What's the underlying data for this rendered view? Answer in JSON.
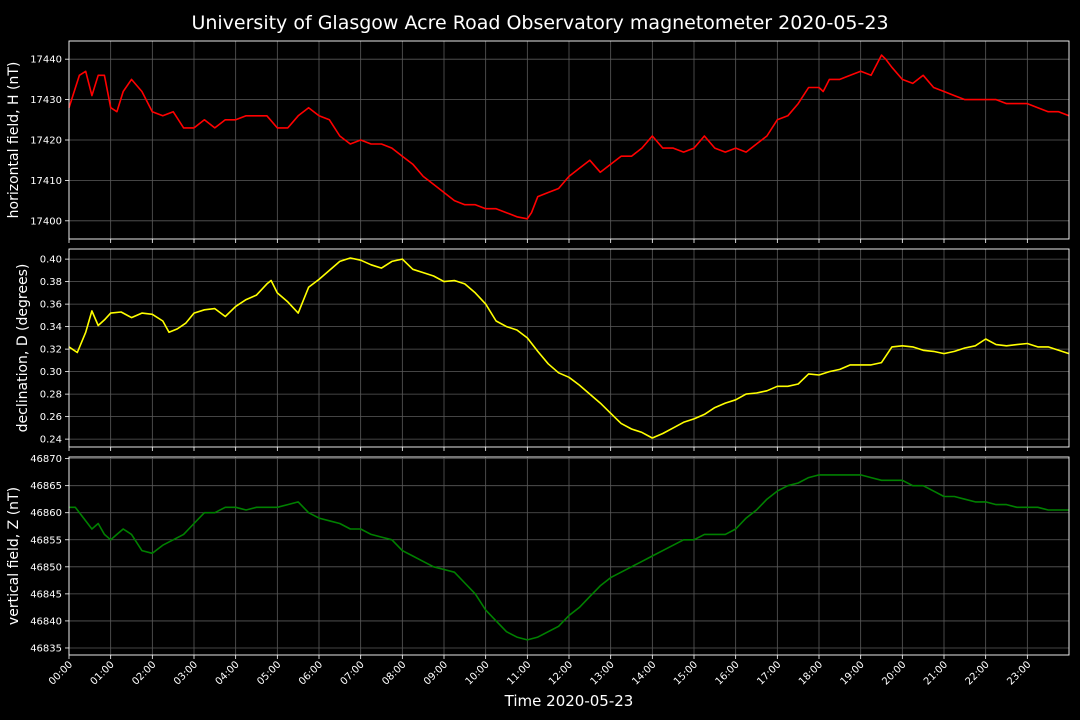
{
  "page": {
    "background": "#000000",
    "text_color": "#ffffff",
    "grid_color": "#5a5a5a"
  },
  "chart_data": [
    {
      "type": "line",
      "title": "University of Glasgow Acre Road Observatory magnetometer 2020-05-23",
      "ylabel": "horizontal field, H (nT)",
      "ylim": [
        17395.5,
        17444.5
      ],
      "yticks": [
        17400,
        17410,
        17420,
        17430,
        17440
      ],
      "xlim": [
        0,
        24
      ],
      "grid": true,
      "series": [
        {
          "color": "#ff0000",
          "x": [
            0,
            0.25,
            0.4,
            0.55,
            0.7,
            0.85,
            1.0,
            1.15,
            1.3,
            1.5,
            1.75,
            2.0,
            2.25,
            2.5,
            2.75,
            3.0,
            3.25,
            3.5,
            3.75,
            4.0,
            4.25,
            4.5,
            4.75,
            5.0,
            5.25,
            5.5,
            5.75,
            6.0,
            6.25,
            6.5,
            6.75,
            7.0,
            7.25,
            7.5,
            7.75,
            8.0,
            8.25,
            8.5,
            8.75,
            9.0,
            9.25,
            9.5,
            9.75,
            10.0,
            10.25,
            10.5,
            10.75,
            11.0,
            11.1,
            11.25,
            11.5,
            11.75,
            12.0,
            12.25,
            12.5,
            12.75,
            13.0,
            13.25,
            13.5,
            13.75,
            14.0,
            14.25,
            14.5,
            14.75,
            15.0,
            15.25,
            15.5,
            15.75,
            16.0,
            16.25,
            16.5,
            16.75,
            17.0,
            17.25,
            17.5,
            17.75,
            18.0,
            18.1,
            18.25,
            18.5,
            18.75,
            19.0,
            19.25,
            19.5,
            19.6,
            19.75,
            20.0,
            20.25,
            20.5,
            20.75,
            21.0,
            21.25,
            21.5,
            21.75,
            22.0,
            22.25,
            22.5,
            22.75,
            23.0,
            23.25,
            23.5,
            23.75,
            24.0
          ],
          "values": [
            17428,
            17436,
            17437,
            17431,
            17436,
            17436,
            17428,
            17427,
            17432,
            17435,
            17432,
            17427,
            17426,
            17427,
            17423,
            17423,
            17425,
            17423,
            17425,
            17425,
            17426,
            17426,
            17426,
            17423,
            17423,
            17426,
            17428,
            17426,
            17425,
            17421,
            17419,
            17420,
            17419,
            17419,
            17418,
            17416,
            17414,
            17411,
            17409,
            17407,
            17405,
            17404,
            17404,
            17403,
            17403,
            17402,
            17401,
            17400.5,
            17402,
            17406,
            17407,
            17408,
            17411,
            17413,
            17415,
            17412,
            17414,
            17416,
            17416,
            17418,
            17421,
            17418,
            17418,
            17417,
            17418,
            17421,
            17418,
            17417,
            17418,
            17417,
            17419,
            17421,
            17425,
            17426,
            17429,
            17433,
            17433,
            17432,
            17435,
            17435,
            17436,
            17437,
            17436,
            17441,
            17440,
            17438,
            17435,
            17434,
            17436,
            17433,
            17432,
            17431,
            17430,
            17430,
            17430,
            17430,
            17429,
            17429,
            17429,
            17428,
            17427,
            17427,
            17426
          ]
        }
      ]
    },
    {
      "type": "line",
      "ylabel": "declination, D (degrees)",
      "ylim": [
        0.233,
        0.409
      ],
      "yticks": [
        0.24,
        0.26,
        0.28,
        0.3,
        0.32,
        0.34,
        0.36,
        0.38,
        0.4
      ],
      "xlim": [
        0,
        24
      ],
      "grid": true,
      "series": [
        {
          "color": "#ffff00",
          "x": [
            0,
            0.2,
            0.4,
            0.55,
            0.7,
            0.85,
            1.0,
            1.25,
            1.5,
            1.75,
            2.0,
            2.25,
            2.4,
            2.6,
            2.8,
            3.0,
            3.25,
            3.5,
            3.75,
            4.0,
            4.25,
            4.5,
            4.75,
            4.85,
            5.0,
            5.25,
            5.5,
            5.75,
            6.0,
            6.25,
            6.5,
            6.75,
            7.0,
            7.25,
            7.5,
            7.75,
            8.0,
            8.25,
            8.5,
            8.75,
            9.0,
            9.25,
            9.5,
            9.75,
            10.0,
            10.25,
            10.5,
            10.75,
            11.0,
            11.25,
            11.5,
            11.75,
            12.0,
            12.25,
            12.5,
            12.75,
            13.0,
            13.25,
            13.5,
            13.75,
            14.0,
            14.25,
            14.5,
            14.75,
            15.0,
            15.25,
            15.5,
            15.75,
            16.0,
            16.25,
            16.5,
            16.75,
            17.0,
            17.25,
            17.5,
            17.75,
            18.0,
            18.25,
            18.5,
            18.75,
            19.0,
            19.25,
            19.5,
            19.75,
            20.0,
            20.25,
            20.5,
            20.75,
            21.0,
            21.25,
            21.5,
            21.75,
            22.0,
            22.25,
            22.5,
            22.75,
            23.0,
            23.25,
            23.5,
            23.75,
            24.0
          ],
          "values": [
            0.322,
            0.317,
            0.335,
            0.354,
            0.341,
            0.346,
            0.352,
            0.353,
            0.348,
            0.352,
            0.351,
            0.345,
            0.335,
            0.338,
            0.343,
            0.352,
            0.355,
            0.356,
            0.349,
            0.358,
            0.364,
            0.368,
            0.378,
            0.381,
            0.37,
            0.362,
            0.352,
            0.375,
            0.382,
            0.39,
            0.398,
            0.401,
            0.399,
            0.395,
            0.392,
            0.398,
            0.4,
            0.391,
            0.388,
            0.385,
            0.38,
            0.381,
            0.378,
            0.37,
            0.36,
            0.345,
            0.34,
            0.337,
            0.33,
            0.318,
            0.307,
            0.299,
            0.295,
            0.288,
            0.28,
            0.272,
            0.263,
            0.254,
            0.249,
            0.246,
            0.241,
            0.245,
            0.25,
            0.255,
            0.258,
            0.262,
            0.268,
            0.272,
            0.275,
            0.28,
            0.281,
            0.283,
            0.287,
            0.287,
            0.289,
            0.298,
            0.297,
            0.3,
            0.302,
            0.306,
            0.306,
            0.306,
            0.308,
            0.322,
            0.323,
            0.322,
            0.319,
            0.318,
            0.316,
            0.318,
            0.321,
            0.323,
            0.329,
            0.324,
            0.323,
            0.324,
            0.325,
            0.322,
            0.322,
            0.319,
            0.316
          ]
        }
      ]
    },
    {
      "type": "line",
      "ylabel": "vertical field, Z (nT)",
      "xlabel": "Time 2020-05-23",
      "ylim": [
        46833.7,
        46870.3
      ],
      "yticks": [
        46835,
        46840,
        46845,
        46850,
        46855,
        46860,
        46865,
        46870
      ],
      "xlim": [
        0,
        24
      ],
      "grid": true,
      "categories": [
        "00:00",
        "01:00",
        "02:00",
        "03:00",
        "04:00",
        "05:00",
        "06:00",
        "07:00",
        "08:00",
        "09:00",
        "10:00",
        "11:00",
        "12:00",
        "13:00",
        "14:00",
        "15:00",
        "16:00",
        "17:00",
        "18:00",
        "19:00",
        "20:00",
        "21:00",
        "22:00",
        "23:00"
      ],
      "series": [
        {
          "color": "#008000",
          "x": [
            0,
            0.15,
            0.35,
            0.55,
            0.7,
            0.85,
            1.0,
            1.15,
            1.3,
            1.5,
            1.75,
            2.0,
            2.25,
            2.5,
            2.75,
            3.0,
            3.25,
            3.5,
            3.75,
            4.0,
            4.25,
            4.5,
            4.75,
            5.0,
            5.25,
            5.5,
            5.75,
            6.0,
            6.25,
            6.5,
            6.75,
            7.0,
            7.25,
            7.5,
            7.75,
            8.0,
            8.25,
            8.5,
            8.75,
            9.0,
            9.25,
            9.5,
            9.75,
            10.0,
            10.25,
            10.5,
            10.75,
            11.0,
            11.25,
            11.5,
            11.75,
            12.0,
            12.25,
            12.5,
            12.75,
            13.0,
            13.25,
            13.5,
            13.75,
            14.0,
            14.25,
            14.5,
            14.75,
            15.0,
            15.25,
            15.5,
            15.75,
            16.0,
            16.25,
            16.5,
            16.75,
            17.0,
            17.25,
            17.5,
            17.75,
            18.0,
            18.25,
            18.5,
            18.75,
            19.0,
            19.25,
            19.5,
            19.75,
            20.0,
            20.25,
            20.5,
            20.75,
            21.0,
            21.25,
            21.5,
            21.75,
            22.0,
            22.25,
            22.5,
            22.75,
            23.0,
            23.25,
            23.5,
            23.75,
            24.0
          ],
          "values": [
            46861,
            46861,
            46859,
            46857,
            46858,
            46856,
            46855,
            46856,
            46857,
            46856,
            46853,
            46852.5,
            46854,
            46855,
            46856,
            46858,
            46860,
            46860,
            46861,
            46861,
            46860.5,
            46861,
            46861,
            46861,
            46861.5,
            46862,
            46860,
            46859,
            46858.5,
            46858,
            46857,
            46857,
            46856,
            46855.5,
            46855,
            46853,
            46852,
            46851,
            46850,
            46849.5,
            46849,
            46847,
            46845,
            46842,
            46840,
            46838,
            46837,
            46836.5,
            46837,
            46838,
            46839,
            46841,
            46842.5,
            46844.5,
            46846.5,
            46848,
            46849,
            46850,
            46851,
            46852,
            46853,
            46854,
            46855,
            46855,
            46856,
            46856,
            46856,
            46857,
            46859,
            46860.5,
            46862.5,
            46864,
            46865,
            46865.5,
            46866.5,
            46867,
            46867,
            46867,
            46867,
            46867,
            46866.5,
            46866,
            46866,
            46866,
            46865,
            46865,
            46864,
            46863,
            46863,
            46862.5,
            46862,
            46862,
            46861.5,
            46861.5,
            46861,
            46861,
            46861,
            46860.5,
            46860.5,
            46860.5
          ]
        }
      ]
    }
  ]
}
